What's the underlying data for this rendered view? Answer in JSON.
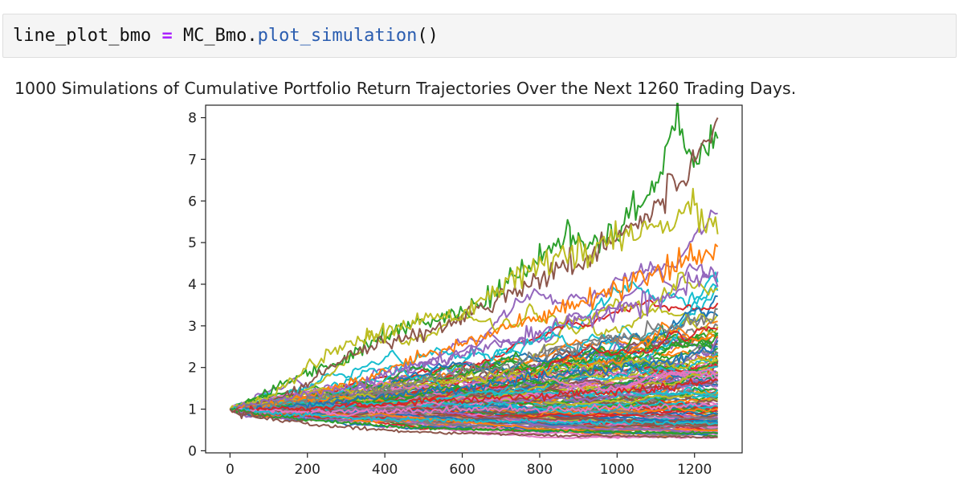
{
  "notebook": {
    "code": {
      "variable": "line_plot_bmo",
      "operator": "=",
      "object": "MC_Bmo",
      "dot": ".",
      "method": "plot_simulation",
      "parens": "()"
    },
    "output_title": "1000 Simulations of Cumulative Portfolio Return Trajectories Over the Next 1260 Trading Days."
  },
  "colors": {
    "cell_bg": "#f5f5f5",
    "operator": "#aa22ff",
    "function": "#2a5db0",
    "series_palette": [
      "#1f77b4",
      "#ff7f0e",
      "#2ca02c",
      "#d62728",
      "#9467bd",
      "#8c564b",
      "#e377c2",
      "#7f7f7f",
      "#bcbd22",
      "#17becf"
    ]
  },
  "chart_data": {
    "type": "line",
    "title": "1000 Simulations of Cumulative Portfolio Return Trajectories Over the Next 1260 Trading Days.",
    "xlabel": "",
    "ylabel": "",
    "xlim": [
      -63,
      1323
    ],
    "ylim": [
      -0.05,
      8.3
    ],
    "xticks": [
      0,
      200,
      400,
      600,
      800,
      1000,
      1200
    ],
    "yticks": [
      0,
      1,
      2,
      3,
      4,
      5,
      6,
      7,
      8
    ],
    "num_simulations": 1000,
    "num_days": 1260,
    "start_value": 1.0,
    "grid": false,
    "legend": "none",
    "series": [
      {
        "x": [
          0,
          100,
          200,
          300,
          400,
          500,
          600,
          700,
          800,
          880,
          900,
          1000,
          1100,
          1150,
          1200,
          1260
        ],
        "values": [
          1.0,
          1.4,
          1.9,
          2.2,
          2.8,
          3.1,
          3.3,
          3.9,
          4.6,
          5.3,
          4.9,
          5.2,
          6.4,
          7.8,
          7.0,
          7.5
        ]
      },
      {
        "x": [
          0,
          100,
          200,
          300,
          400,
          500,
          600,
          700,
          800,
          900,
          1000,
          1100,
          1200,
          1260
        ],
        "values": [
          1.0,
          1.2,
          1.6,
          2.3,
          2.6,
          2.8,
          3.2,
          3.7,
          4.2,
          4.5,
          5.2,
          5.8,
          7.0,
          8.0
        ]
      },
      {
        "x": [
          0,
          100,
          200,
          300,
          400,
          500,
          600,
          700,
          800,
          900,
          1000,
          1100,
          1200,
          1260
        ],
        "values": [
          1.0,
          1.3,
          2.0,
          2.6,
          2.8,
          3.2,
          3.3,
          4.0,
          4.4,
          4.8,
          5.0,
          5.4,
          5.8,
          5.2
        ]
      },
      {
        "x": [
          0,
          100,
          200,
          300,
          400,
          500,
          600,
          700,
          800,
          900,
          1000,
          1100,
          1200,
          1260
        ],
        "values": [
          1.0,
          1.1,
          1.3,
          1.6,
          1.9,
          2.3,
          2.6,
          2.9,
          3.2,
          3.5,
          3.9,
          4.2,
          4.6,
          4.9
        ]
      },
      {
        "x": [
          0,
          100,
          200,
          300,
          400,
          500,
          600,
          700,
          800,
          900,
          1000,
          1100,
          1200,
          1260
        ],
        "values": [
          1.0,
          1.2,
          1.4,
          1.5,
          1.8,
          2.1,
          2.3,
          2.6,
          2.8,
          3.1,
          3.4,
          3.6,
          4.0,
          4.3
        ]
      },
      {
        "x": [
          0,
          100,
          200,
          300,
          400,
          500,
          600,
          700,
          800,
          900,
          1000,
          1100,
          1200,
          1260
        ],
        "values": [
          1.0,
          1.1,
          1.2,
          1.4,
          1.5,
          1.7,
          1.9,
          2.0,
          2.3,
          2.5,
          2.7,
          2.9,
          3.1,
          3.4
        ]
      },
      {
        "x": [
          0,
          100,
          200,
          300,
          400,
          500,
          600,
          700,
          800,
          900,
          1000,
          1100,
          1200,
          1260
        ],
        "values": [
          1.0,
          1.0,
          1.1,
          1.2,
          1.3,
          1.4,
          1.5,
          1.6,
          1.8,
          1.9,
          2.0,
          2.1,
          2.3,
          2.5
        ]
      },
      {
        "x": [
          0,
          100,
          200,
          300,
          400,
          500,
          600,
          700,
          800,
          900,
          1000,
          1100,
          1200,
          1260
        ],
        "values": [
          1.0,
          1.0,
          1.0,
          1.1,
          1.1,
          1.2,
          1.2,
          1.3,
          1.3,
          1.4,
          1.4,
          1.5,
          1.6,
          1.7
        ]
      },
      {
        "x": [
          0,
          100,
          200,
          300,
          400,
          500,
          600,
          700,
          800,
          900,
          1000,
          1100,
          1200,
          1260
        ],
        "values": [
          1.0,
          0.95,
          0.95,
          0.95,
          0.95,
          0.95,
          1.0,
          1.0,
          1.0,
          1.0,
          1.05,
          1.05,
          1.1,
          1.1
        ]
      },
      {
        "x": [
          0,
          100,
          200,
          300,
          400,
          500,
          600,
          700,
          800,
          900,
          1000,
          1100,
          1200,
          1260
        ],
        "values": [
          1.0,
          0.9,
          0.85,
          0.8,
          0.75,
          0.75,
          0.72,
          0.7,
          0.7,
          0.68,
          0.68,
          0.68,
          0.66,
          0.65
        ]
      },
      {
        "x": [
          0,
          100,
          200,
          300,
          400,
          500,
          600,
          700,
          800,
          900,
          1000,
          1100,
          1200,
          1260
        ],
        "values": [
          1.0,
          0.85,
          0.75,
          0.68,
          0.6,
          0.55,
          0.52,
          0.5,
          0.48,
          0.46,
          0.45,
          0.44,
          0.43,
          0.42
        ]
      },
      {
        "x": [
          0,
          100,
          200,
          300,
          400,
          500,
          600,
          700,
          800,
          900,
          1000,
          1100,
          1200,
          1260
        ],
        "values": [
          1.0,
          0.78,
          0.65,
          0.56,
          0.5,
          0.45,
          0.42,
          0.4,
          0.38,
          0.36,
          0.35,
          0.34,
          0.33,
          0.32
        ]
      }
    ]
  }
}
